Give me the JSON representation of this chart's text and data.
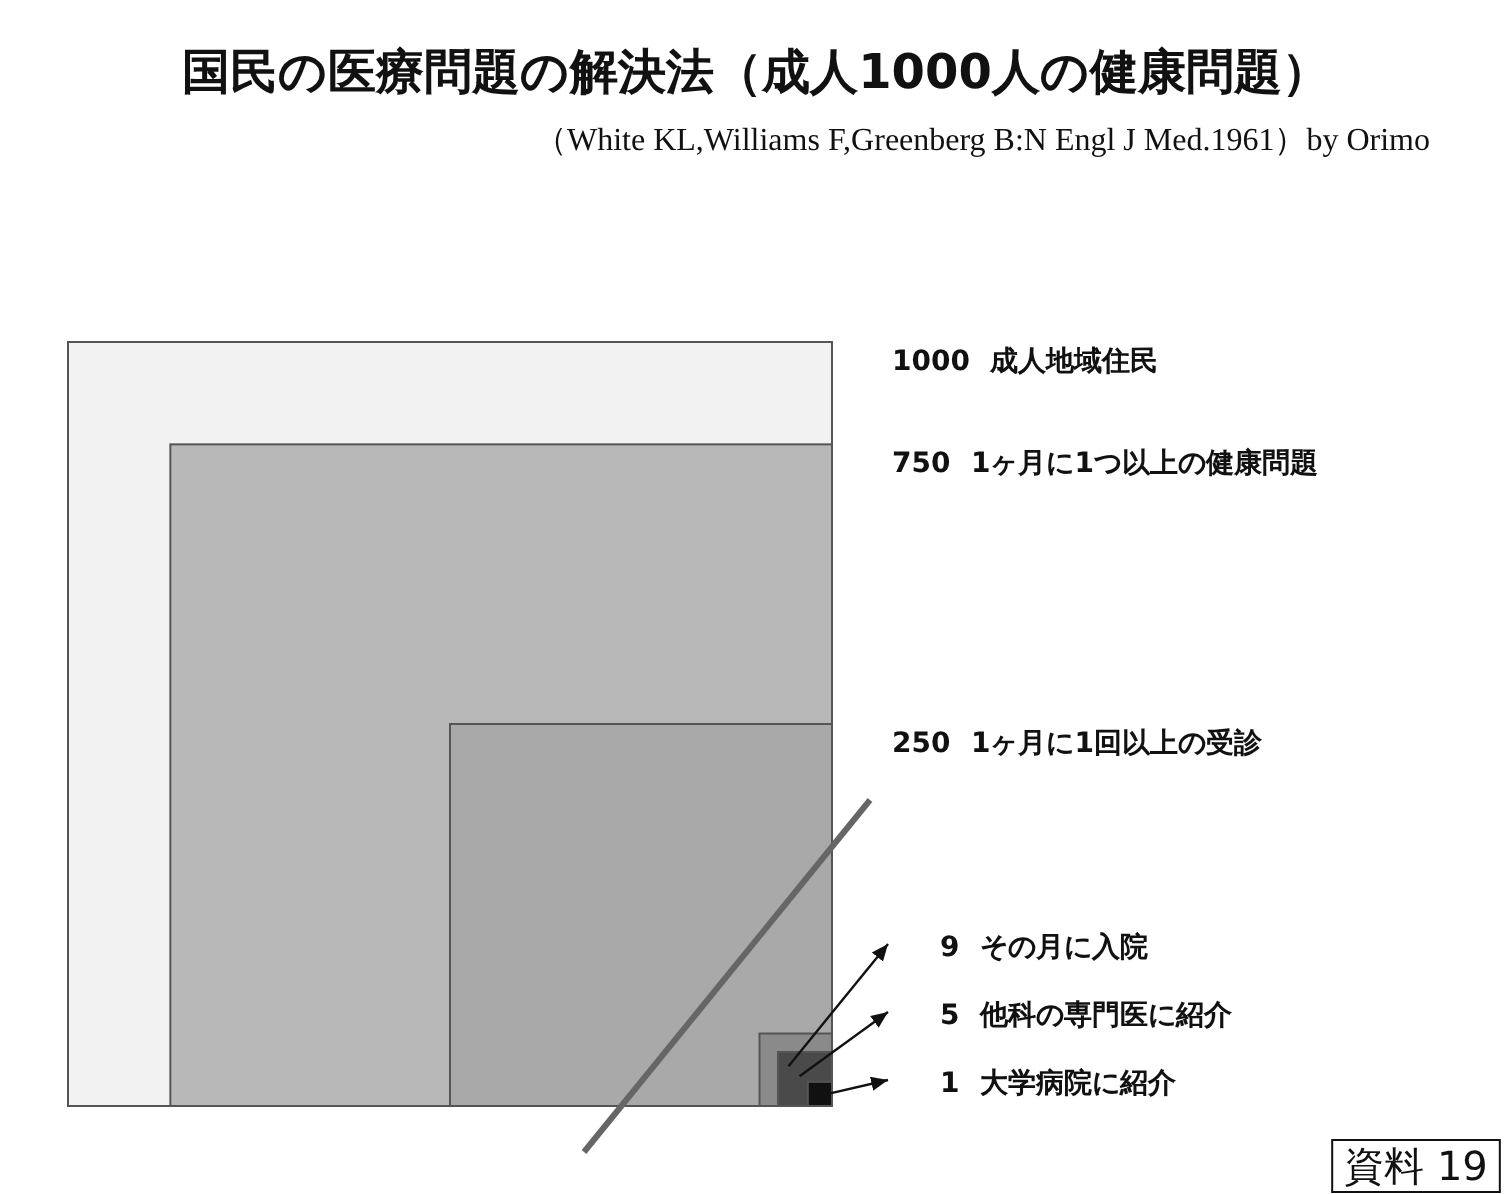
{
  "chart_data": {
    "type": "other",
    "title": "国民の医療問題の解決法（成人1000人の健康問題）",
    "subtitle": "（White KL,Williams F,Greenberg B:N Engl J Med.1961）by Orimo",
    "categories": [
      "成人地域住民",
      "1ヶ月に1つ以上の健康問題",
      "1ヶ月に1回以上の受診",
      "その月に入院",
      "他科の専門医に紹介",
      "大学病院に紹介"
    ],
    "values": [
      1000,
      750,
      250,
      9,
      5,
      1
    ],
    "colors": [
      "#f2f2f2",
      "#b8b8b8",
      "#a9a9a9",
      "#8a8a8a",
      "#4a4a4a",
      "#111111"
    ],
    "data_labels": true,
    "annotations": [
      "資料 19"
    ]
  }
}
